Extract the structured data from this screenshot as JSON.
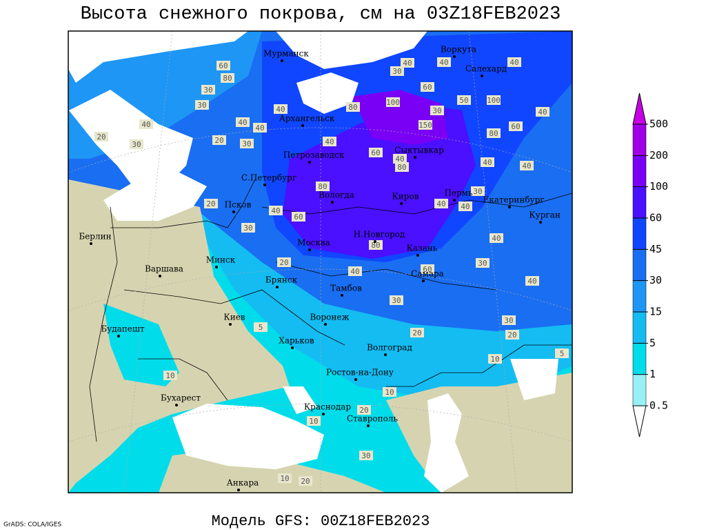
{
  "title": "Высота снежного покрова, см на 03Z18FEB2023",
  "footer": "Модель GFS: 00Z18FEB2023",
  "credit": "GrADS: COLA/IGES",
  "cities": [
    "Мурманск",
    "Воркута",
    "Салехард",
    "Архангельск",
    "Сыктывкар",
    "Петрозаводск",
    "С.Петербург",
    "Вологда",
    "Киров",
    "Пермь",
    "Екатеринбург",
    "Курган",
    "Псков",
    "Берлин",
    "Н.Новгород",
    "Москва",
    "Казань",
    "Минск",
    "Варшава",
    "Самара",
    "Брянск",
    "Тамбов",
    "Киев",
    "Воронеж",
    "Будапешт",
    "Харьков",
    "Волгоград",
    "Ростов-на-Дону",
    "Бухарест",
    "Краснодар",
    "Ставрополь",
    "Анкара"
  ],
  "contour_labels": [
    60,
    80,
    30,
    30,
    40,
    20,
    30,
    20,
    30,
    40,
    40,
    40,
    80,
    100,
    150,
    60,
    100,
    50,
    30,
    60,
    80,
    40,
    40,
    40,
    30,
    40,
    40,
    20,
    40,
    60,
    30,
    80,
    40,
    30,
    40,
    80,
    40,
    20,
    30,
    60,
    30,
    20,
    20,
    10,
    5,
    5,
    10,
    10,
    20,
    30,
    10,
    20,
    40,
    80,
    60,
    40,
    40,
    30,
    40,
    40,
    10
  ],
  "colorbar": {
    "levels": [
      0.5,
      1,
      5,
      15,
      30,
      45,
      60,
      100,
      200,
      500
    ],
    "colors": [
      "#ffffff",
      "#96f0f5",
      "#00dcea",
      "#14bcf2",
      "#1e96f5",
      "#1a6ef2",
      "#1046ff",
      "#4a10ff",
      "#7a00f5",
      "#a000e6",
      "#c800e6"
    ]
  }
}
